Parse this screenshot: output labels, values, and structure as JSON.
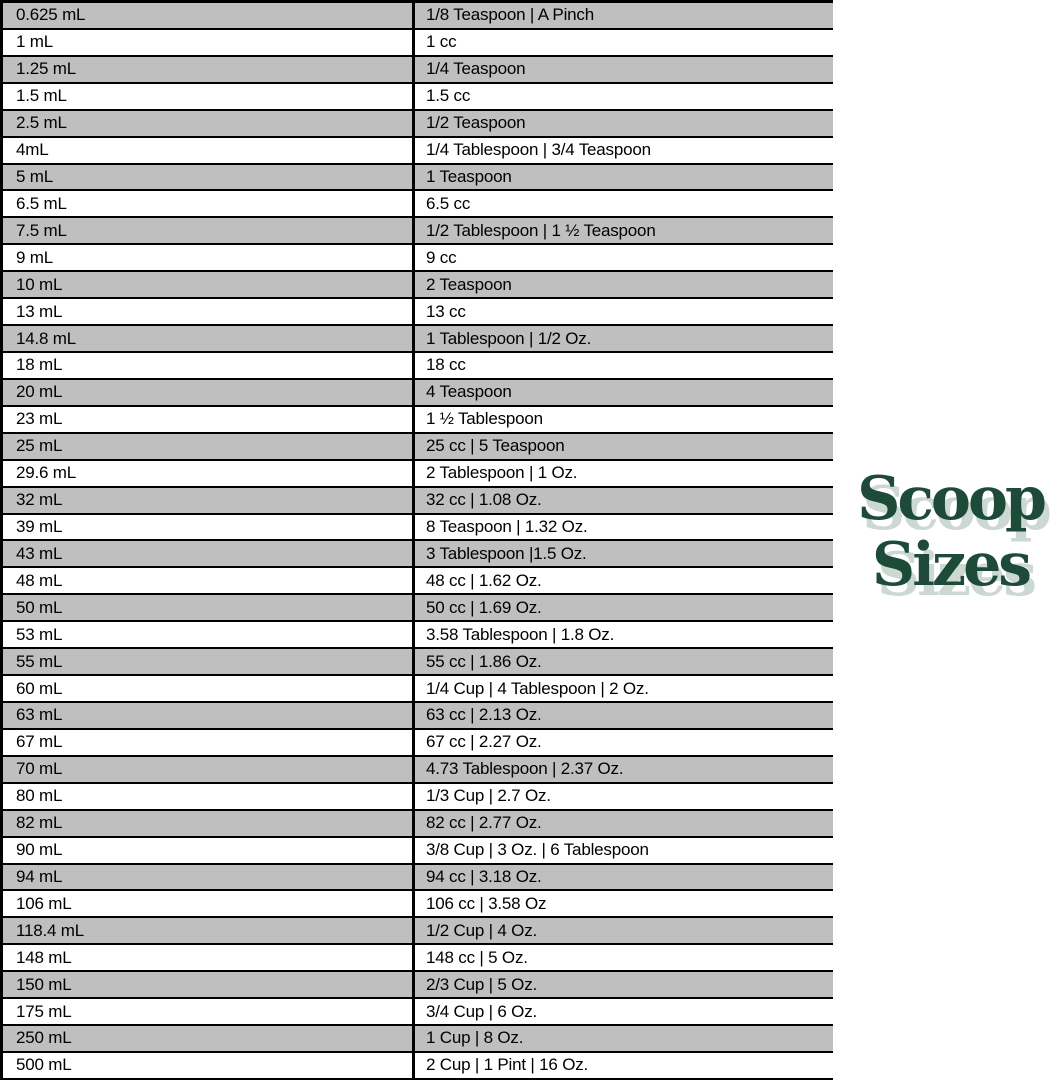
{
  "logo": {
    "line1": "Scoop",
    "line2": "Sizes",
    "text_color": "#1e4a3a",
    "shadow_color": "#ccd8d2"
  },
  "table": {
    "colors": {
      "stripe": "#bfbfbf",
      "border": "#000000"
    },
    "rows": [
      {
        "ml": "0.625 mL",
        "equivalent": "1/8 Teaspoon | A Pinch"
      },
      {
        "ml": "1 mL",
        "equivalent": "1 cc"
      },
      {
        "ml": "1.25 mL",
        "equivalent": "1/4 Teaspoon"
      },
      {
        "ml": "1.5 mL",
        "equivalent": "1.5 cc"
      },
      {
        "ml": "2.5 mL",
        "equivalent": "1/2 Teaspoon"
      },
      {
        "ml": "4mL",
        "equivalent": "1/4 Tablespoon | 3/4 Teaspoon"
      },
      {
        "ml": "5 mL",
        "equivalent": "1 Teaspoon"
      },
      {
        "ml": "6.5 mL",
        "equivalent": "6.5 cc"
      },
      {
        "ml": "7.5 mL",
        "equivalent": "1/2 Tablespoon | 1 ½ Teaspoon"
      },
      {
        "ml": "9 mL",
        "equivalent": "9 cc"
      },
      {
        "ml": "10 mL",
        "equivalent": "2 Teaspoon"
      },
      {
        "ml": "13 mL",
        "equivalent": "13 cc"
      },
      {
        "ml": "14.8 mL",
        "equivalent": "1 Tablespoon | 1/2 Oz."
      },
      {
        "ml": "18 mL",
        "equivalent": "18 cc"
      },
      {
        "ml": "20 mL",
        "equivalent": "4 Teaspoon"
      },
      {
        "ml": "23 mL",
        "equivalent": "1 ½ Tablespoon"
      },
      {
        "ml": "25 mL",
        "equivalent": "25 cc | 5 Teaspoon"
      },
      {
        "ml": "29.6 mL",
        "equivalent": "2 Tablespoon | 1 Oz."
      },
      {
        "ml": "32 mL",
        "equivalent": "32 cc | 1.08 Oz."
      },
      {
        "ml": "39 mL",
        "equivalent": "8 Teaspoon | 1.32 Oz."
      },
      {
        "ml": "43 mL",
        "equivalent": "3 Tablespoon |1.5 Oz."
      },
      {
        "ml": "48 mL",
        "equivalent": "48 cc | 1.62 Oz."
      },
      {
        "ml": "50 mL",
        "equivalent": "50 cc | 1.69 Oz."
      },
      {
        "ml": "53 mL",
        "equivalent": "3.58 Tablespoon | 1.8 Oz."
      },
      {
        "ml": "55 mL",
        "equivalent": "55 cc | 1.86 Oz."
      },
      {
        "ml": "60 mL",
        "equivalent": "1/4 Cup | 4 Tablespoon | 2 Oz."
      },
      {
        "ml": "63 mL",
        "equivalent": "63 cc | 2.13 Oz."
      },
      {
        "ml": "67 mL",
        "equivalent": "67 cc | 2.27 Oz."
      },
      {
        "ml": "70 mL",
        "equivalent": "4.73 Tablespoon | 2.37 Oz."
      },
      {
        "ml": "80 mL",
        "equivalent": "1/3 Cup | 2.7 Oz."
      },
      {
        "ml": "82 mL",
        "equivalent": "82 cc | 2.77 Oz."
      },
      {
        "ml": "90 mL",
        "equivalent": "3/8 Cup | 3 Oz. | 6 Tablespoon"
      },
      {
        "ml": "94 mL",
        "equivalent": "94 cc | 3.18 Oz."
      },
      {
        "ml": "106 mL",
        "equivalent": "106 cc | 3.58 Oz"
      },
      {
        "ml": "118.4 mL",
        "equivalent": "1/2 Cup | 4 Oz."
      },
      {
        "ml": "148 mL",
        "equivalent": "148 cc | 5 Oz."
      },
      {
        "ml": "150 mL",
        "equivalent": "2/3 Cup | 5 Oz."
      },
      {
        "ml": "175 mL",
        "equivalent": "3/4 Cup | 6 Oz."
      },
      {
        "ml": "250 mL",
        "equivalent": "1 Cup | 8 Oz."
      },
      {
        "ml": "500 mL",
        "equivalent": "2 Cup | 1 Pint | 16 Oz."
      }
    ]
  }
}
